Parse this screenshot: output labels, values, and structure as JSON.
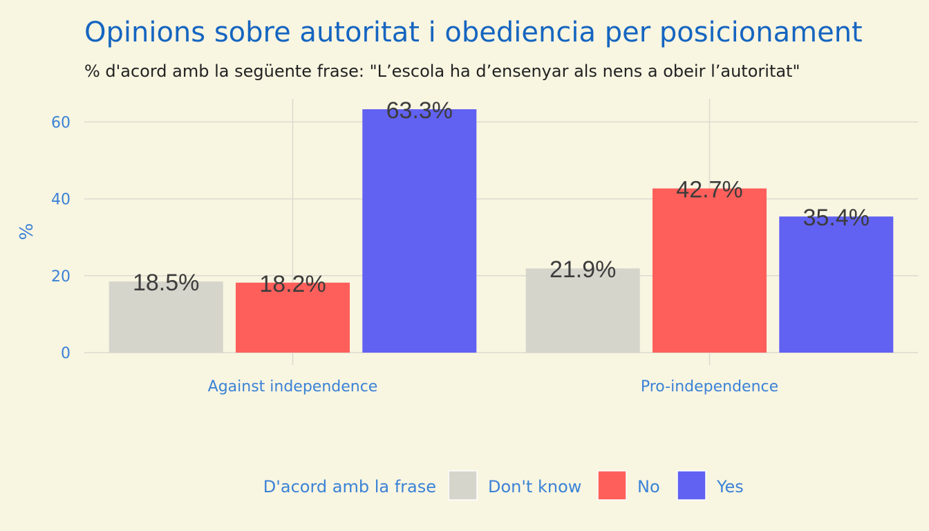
{
  "chart_data": {
    "type": "bar",
    "title": "Opinions sobre autoritat i obediencia per posicionament",
    "subtitle": "% d'acord amb la següente frase: \"L’escola ha d’ensenyar als nens a obeir l’autoritat\"",
    "ylabel": "%",
    "xlabel": "",
    "ylim": [
      0,
      66
    ],
    "y_ticks": [
      "0",
      "20",
      "40",
      "60"
    ],
    "grid": true,
    "categories": [
      "Against independence",
      "Pro-independence"
    ],
    "series": [
      {
        "name": "Don't know",
        "color": "#d6d5cc",
        "values": [
          18.5,
          21.9
        ],
        "labels": [
          "18.5%",
          "21.9%"
        ]
      },
      {
        "name": "No",
        "color": "#ff5f5a",
        "values": [
          18.2,
          42.7
        ],
        "labels": [
          "18.2%",
          "42.7%"
        ]
      },
      {
        "name": "Yes",
        "color": "#6161f2",
        "values": [
          63.3,
          35.4
        ],
        "labels": [
          "63.3%",
          "35.4%"
        ]
      }
    ],
    "legend": {
      "title": "D'acord amb la frase",
      "position": "bottom"
    }
  }
}
